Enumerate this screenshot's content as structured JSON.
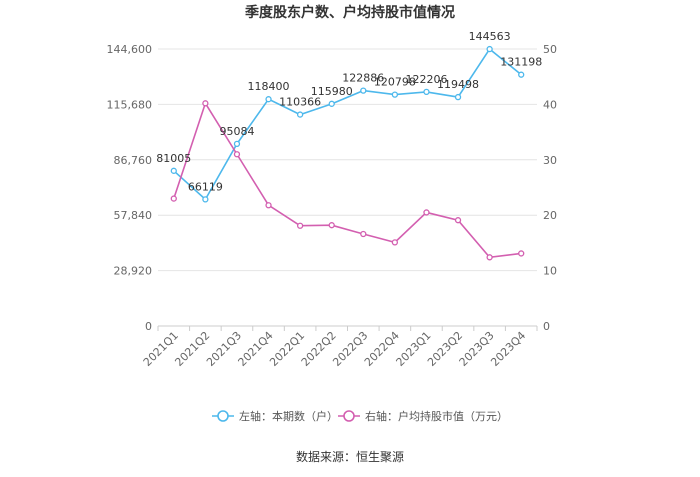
{
  "chart_data": {
    "type": "line",
    "title": "季度股东户数、户均持股市值情况",
    "categories": [
      "2021Q1",
      "2021Q2",
      "2021Q3",
      "2021Q4",
      "2022Q1",
      "2022Q2",
      "2022Q3",
      "2022Q4",
      "2023Q1",
      "2023Q2",
      "2023Q3",
      "2023Q4"
    ],
    "left_axis": {
      "ticks": [
        "0",
        "28,920",
        "57,840",
        "86,760",
        "115,680",
        "144,600"
      ],
      "range": [
        0,
        144600
      ]
    },
    "right_axis": {
      "ticks": [
        "0",
        "10",
        "20",
        "30",
        "40",
        "50"
      ],
      "range": [
        0,
        50
      ]
    },
    "series": [
      {
        "name": "左轴：本期数（户）",
        "axis": "left",
        "color": "#4db8ec",
        "values": [
          81005,
          66119,
          95084,
          118400,
          110366,
          115980,
          122886,
          120798,
          122206,
          119498,
          144563,
          131198
        ],
        "labels": [
          "81005",
          "66119",
          "95084",
          "118400",
          "110366",
          "115980",
          "122886",
          "120798",
          "122206",
          "119498",
          "144563",
          "131198"
        ]
      },
      {
        "name": "右轴：户均持股市值（万元）",
        "axis": "right",
        "color": "#d35fb0",
        "values": [
          23.0,
          40.2,
          31.0,
          21.8,
          18.1,
          18.2,
          16.6,
          15.1,
          20.5,
          19.1,
          12.4,
          13.1
        ]
      }
    ],
    "grid": true,
    "legend_position": "bottom"
  },
  "source_note": "数据来源：恒生聚源"
}
